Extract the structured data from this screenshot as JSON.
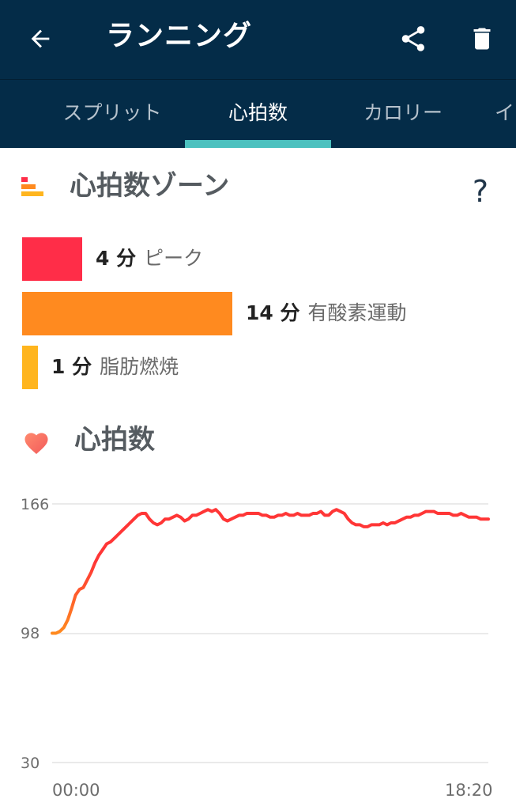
{
  "app_bar": {
    "title": "ランニング",
    "back_icon": "arrow-left-icon",
    "share_icon": "share-icon",
    "delete_icon": "trash-icon"
  },
  "tabs": [
    {
      "label": "スプリット",
      "active": false
    },
    {
      "label": "心拍数",
      "active": true
    },
    {
      "label": "カロリー",
      "active": false
    },
    {
      "label": "イ",
      "active": false
    }
  ],
  "zones_section": {
    "title": "心拍数ゾーン",
    "help": "?",
    "icon": "zone-bars-icon",
    "zones": [
      {
        "value": "4 分",
        "name": "ピーク",
        "minutes": 4,
        "color": "#ff2d48"
      },
      {
        "value": "14 分",
        "name": "有酸素運動",
        "minutes": 14,
        "color": "#ff8a1f"
      },
      {
        "value": "1 分",
        "name": "脂肪燃焼",
        "minutes": 1,
        "color": "#ffb51e"
      }
    ]
  },
  "heart_section": {
    "title": "心拍数",
    "icon": "heart-icon"
  },
  "chart_data": {
    "type": "line",
    "y_ticks": [
      "166",
      "98",
      "30"
    ],
    "ylim": [
      30,
      166
    ],
    "x_ticks": [
      "00:00",
      "18:20"
    ],
    "series": [
      {
        "values": [
          98,
          98,
          99,
          101,
          105,
          111,
          118,
          121,
          122,
          126,
          130,
          135,
          139,
          142,
          145,
          146,
          148,
          150,
          152,
          154,
          156,
          158,
          160,
          161,
          161,
          158,
          156,
          155,
          156,
          158,
          158,
          159,
          160,
          159,
          157,
          158,
          160,
          160,
          161,
          162,
          163,
          162,
          163,
          161,
          158,
          157,
          158,
          159,
          160,
          160,
          161,
          161,
          161,
          161,
          160,
          160,
          159,
          159,
          160,
          160,
          161,
          160,
          160,
          161,
          160,
          160,
          160,
          161,
          161,
          162,
          160,
          160,
          162,
          163,
          162,
          161,
          158,
          156,
          155,
          155,
          154,
          154,
          155,
          155,
          155,
          156,
          155,
          156,
          156,
          157,
          158,
          159,
          159,
          160,
          160,
          161,
          162,
          162,
          162,
          161,
          161,
          161,
          161,
          160,
          160,
          161,
          160,
          159,
          159,
          159,
          158,
          158,
          158
        ],
        "colors": {
          "low": "#ff8a1f",
          "high": "#ff3636"
        }
      }
    ]
  }
}
